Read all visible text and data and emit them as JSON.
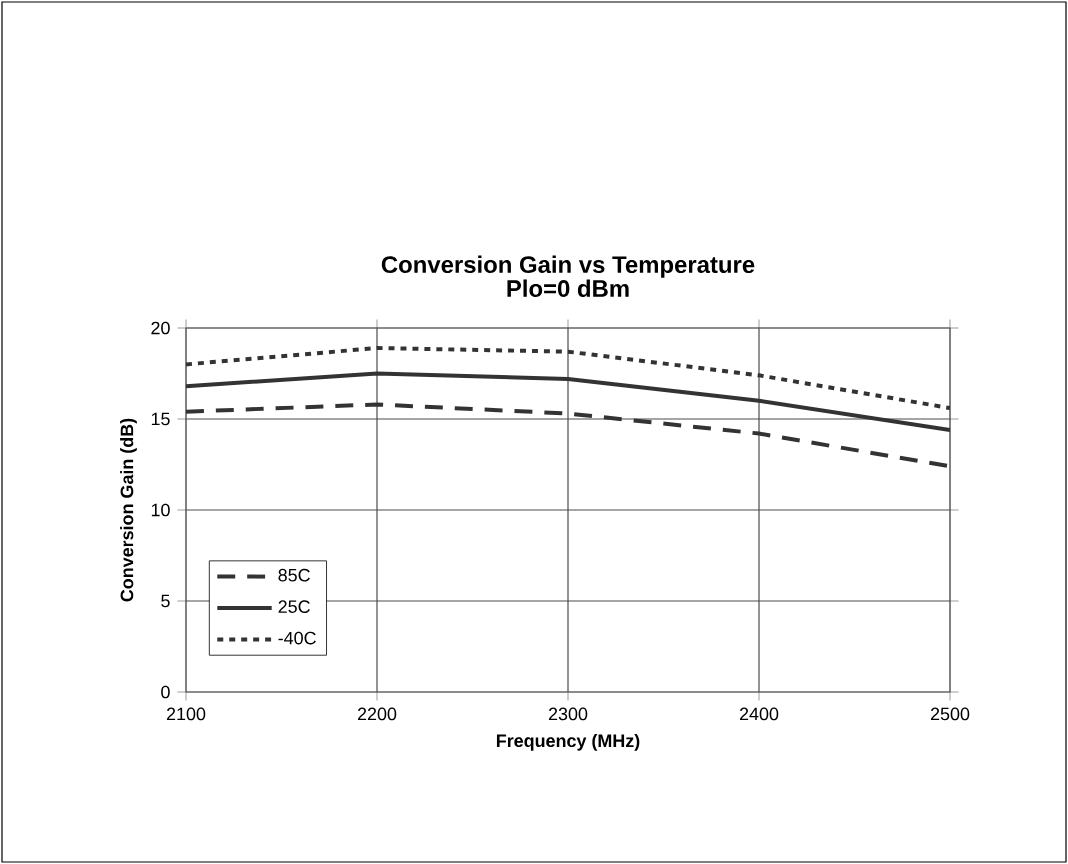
{
  "chart_data": {
    "type": "line",
    "title": "Conversion Gain vs Temperature",
    "subtitle": "Plo=0 dBm",
    "xlabel": "Frequency (MHz)",
    "ylabel": "Conversion Gain (dB)",
    "x": [
      2100,
      2200,
      2300,
      2400,
      2500
    ],
    "series": [
      {
        "name": "85C",
        "color": "#333333",
        "line_style": "dashed",
        "values": [
          15.4,
          15.8,
          15.3,
          14.2,
          12.4
        ]
      },
      {
        "name": "25C",
        "color": "#333333",
        "line_style": "solid",
        "values": [
          16.8,
          17.5,
          17.2,
          16.0,
          14.4
        ]
      },
      {
        "name": "-40C",
        "color": "#333333",
        "line_style": "dotted",
        "values": [
          18.0,
          18.9,
          18.7,
          17.4,
          15.6
        ]
      }
    ],
    "xlim": [
      2100,
      2500
    ],
    "xticks": [
      2100,
      2200,
      2300,
      2400,
      2500
    ],
    "ylim": [
      0,
      20
    ],
    "yticks": [
      0,
      5,
      10,
      15,
      20
    ],
    "grid": true,
    "legend": "left",
    "marker": "none"
  }
}
